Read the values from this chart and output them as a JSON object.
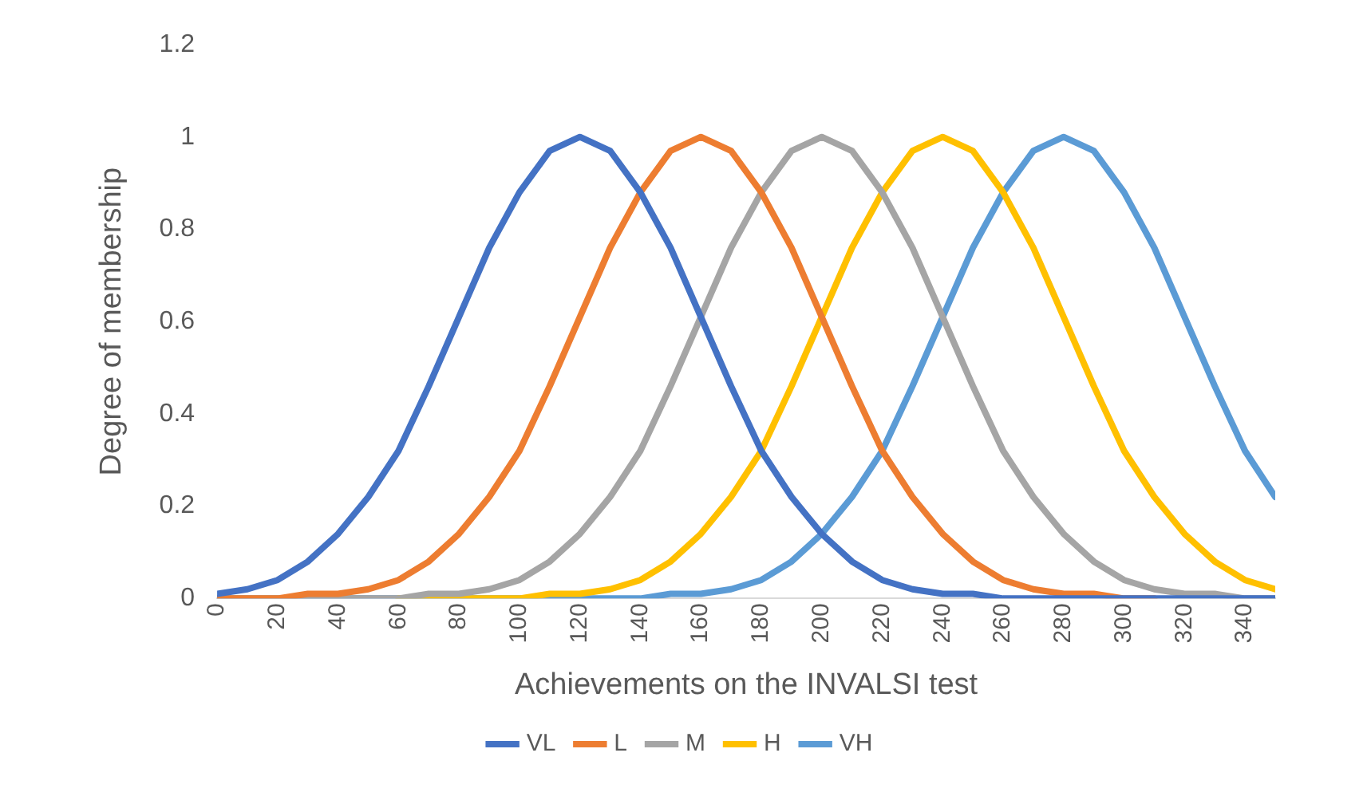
{
  "chart_data": {
    "type": "line",
    "xlabel": "Achievements on the INVALSI test",
    "ylabel": "Degree of membership",
    "x": [
      0,
      10,
      20,
      30,
      40,
      50,
      60,
      70,
      80,
      90,
      100,
      110,
      120,
      130,
      140,
      150,
      160,
      170,
      180,
      190,
      200,
      210,
      220,
      230,
      240,
      250,
      260,
      270,
      280,
      290,
      300,
      310,
      320,
      330,
      340,
      350
    ],
    "xlim": [
      0,
      350
    ],
    "xticks": [
      0,
      20,
      40,
      60,
      80,
      100,
      120,
      140,
      160,
      180,
      200,
      220,
      240,
      260,
      280,
      300,
      320,
      340
    ],
    "ylim": [
      0,
      1.2
    ],
    "yticks": [
      0,
      0.2,
      0.4,
      0.6,
      0.8,
      1,
      1.2
    ],
    "grid": false,
    "legend": "bottom",
    "marker": "none",
    "line_style": "solid",
    "series": [
      {
        "name": "VL",
        "color": "#4472c4",
        "values": [
          0.01,
          0.02,
          0.04,
          0.08,
          0.14,
          0.22,
          0.32,
          0.46,
          0.61,
          0.76,
          0.88,
          0.97,
          1,
          0.97,
          0.88,
          0.76,
          0.61,
          0.46,
          0.32,
          0.22,
          0.14,
          0.08,
          0.04,
          0.02,
          0.01,
          0.01,
          0,
          0,
          0,
          0,
          0,
          0,
          0,
          0,
          0,
          0
        ]
      },
      {
        "name": "L",
        "color": "#ed7d31",
        "values": [
          0,
          0,
          0,
          0.01,
          0.01,
          0.02,
          0.04,
          0.08,
          0.14,
          0.22,
          0.32,
          0.46,
          0.61,
          0.76,
          0.88,
          0.97,
          1,
          0.97,
          0.88,
          0.76,
          0.61,
          0.46,
          0.32,
          0.22,
          0.14,
          0.08,
          0.04,
          0.02,
          0.01,
          0.01,
          0,
          0,
          null,
          null,
          null,
          null
        ]
      },
      {
        "name": "M",
        "color": "#a5a5a5",
        "values": [
          0,
          0,
          0,
          0,
          0,
          0,
          0,
          0.01,
          0.01,
          0.02,
          0.04,
          0.08,
          0.14,
          0.22,
          0.32,
          0.46,
          0.61,
          0.76,
          0.88,
          0.97,
          1,
          0.97,
          0.88,
          0.76,
          0.61,
          0.46,
          0.32,
          0.22,
          0.14,
          0.08,
          0.04,
          0.02,
          0.01,
          0.01,
          0,
          0
        ]
      },
      {
        "name": "H",
        "color": "#ffc000",
        "values": [
          null,
          null,
          null,
          null,
          null,
          null,
          0,
          0,
          0,
          0,
          0,
          0.01,
          0.01,
          0.02,
          0.04,
          0.08,
          0.14,
          0.22,
          0.32,
          0.46,
          0.61,
          0.76,
          0.88,
          0.97,
          1,
          0.97,
          0.88,
          0.76,
          0.61,
          0.46,
          0.32,
          0.22,
          0.14,
          0.08,
          0.04,
          0.02
        ]
      },
      {
        "name": "VH",
        "color": "#5b9bd5",
        "values": [
          0,
          0,
          0,
          0,
          0,
          0,
          0,
          0,
          0,
          0,
          0,
          0,
          0,
          0,
          0,
          0.01,
          0.01,
          0.02,
          0.04,
          0.08,
          0.14,
          0.22,
          0.32,
          0.46,
          0.61,
          0.76,
          0.88,
          0.97,
          1,
          0.97,
          0.88,
          0.76,
          0.61,
          0.46,
          0.32,
          0.22
        ]
      }
    ]
  }
}
